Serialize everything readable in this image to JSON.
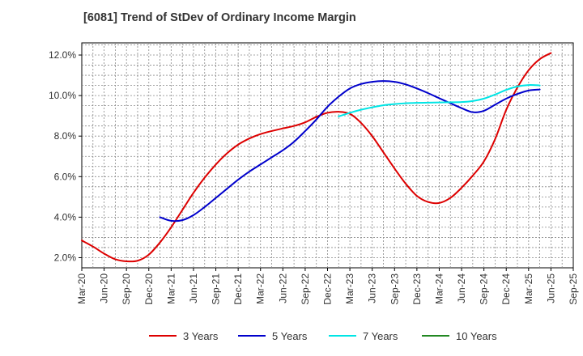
{
  "chart_data": {
    "type": "line",
    "title": "[6081]  Trend of StDev of Ordinary Income Margin",
    "xlabel": "",
    "ylabel": "",
    "x_ticks": [
      "Mar-20",
      "Jun-20",
      "Sep-20",
      "Dec-20",
      "Mar-21",
      "Jun-21",
      "Sep-21",
      "Dec-21",
      "Mar-22",
      "Jun-22",
      "Sep-22",
      "Dec-22",
      "Mar-23",
      "Jun-23",
      "Sep-23",
      "Dec-23",
      "Mar-24",
      "Jun-24",
      "Sep-24",
      "Dec-24",
      "Mar-25",
      "Jun-25",
      "Sep-25"
    ],
    "y_ticks": [
      "2.0%",
      "4.0%",
      "6.0%",
      "8.0%",
      "10.0%",
      "12.0%"
    ],
    "y_tick_values": [
      2,
      4,
      6,
      8,
      10,
      12
    ],
    "ylim": [
      1.5,
      12.6
    ],
    "grid": true,
    "legend_position": "bottom",
    "series": [
      {
        "name": "3 Years",
        "color": "#dd0000",
        "values": [
          2.85,
          2.55,
          2.2,
          1.92,
          1.82,
          1.85,
          2.15,
          2.75,
          3.5,
          4.35,
          5.2,
          5.95,
          6.6,
          7.15,
          7.58,
          7.88,
          8.1,
          8.25,
          8.38,
          8.5,
          8.68,
          8.95,
          9.15,
          9.2,
          9.1,
          8.65,
          8.0,
          7.2,
          6.4,
          5.65,
          5.05,
          4.75,
          4.7,
          4.95,
          5.45,
          6.05,
          6.75,
          7.85,
          9.3,
          10.4,
          11.25,
          11.8,
          12.1
        ]
      },
      {
        "name": "5 Years",
        "color": "#0000cc",
        "values": [
          null,
          null,
          null,
          null,
          null,
          null,
          null,
          4.0,
          3.82,
          3.85,
          4.1,
          4.5,
          4.95,
          5.4,
          5.85,
          6.25,
          6.6,
          6.95,
          7.3,
          7.72,
          8.25,
          8.82,
          9.45,
          9.95,
          10.35,
          10.57,
          10.68,
          10.72,
          10.68,
          10.55,
          10.35,
          10.12,
          9.87,
          9.62,
          9.38,
          9.18,
          9.25,
          9.55,
          9.85,
          10.08,
          10.25,
          10.3
        ]
      },
      {
        "name": "7 Years",
        "color": "#00e5e5",
        "values": [
          null,
          null,
          null,
          null,
          null,
          null,
          null,
          null,
          null,
          null,
          null,
          null,
          null,
          null,
          null,
          null,
          null,
          null,
          null,
          null,
          null,
          null,
          null,
          8.97,
          9.15,
          9.3,
          9.42,
          9.52,
          9.58,
          9.62,
          9.64,
          9.65,
          9.66,
          9.67,
          9.68,
          9.73,
          9.85,
          10.05,
          10.28,
          10.45,
          10.52,
          10.5
        ]
      },
      {
        "name": "10 Years",
        "color": "#228822",
        "values": []
      }
    ]
  }
}
